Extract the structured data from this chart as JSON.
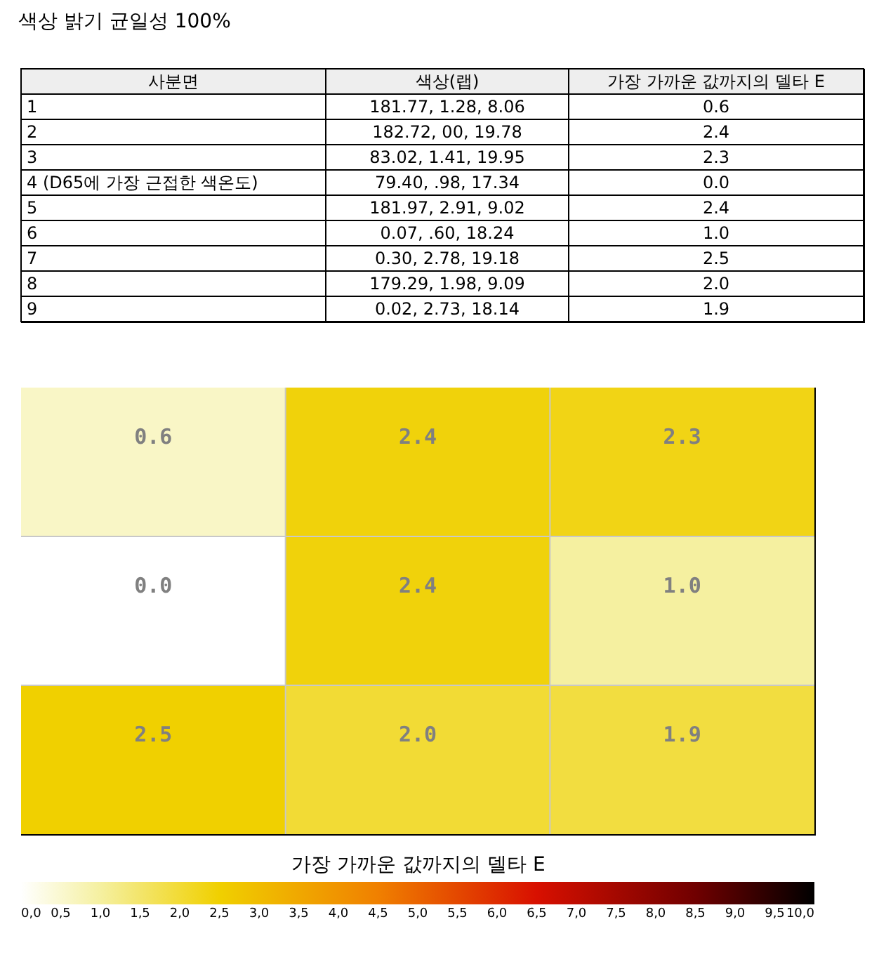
{
  "chart_data": [
    {
      "type": "other",
      "title": "색상 밝기 균일성 100%",
      "annotations": [
        "사분면",
        "색상(랩)",
        "가장 가까운 값까지의 델타 E",
        "1",
        "181.77, 1.28, 8.06",
        "0.6",
        "2",
        "182.72, 00, 19.78",
        "2.4",
        "3",
        "83.02, 1.41, 19.95",
        "2.3",
        "4 (D65에 가장 근접한 색온도)",
        "79.40, .98, 17.34",
        "0.0",
        "5",
        "181.97, 2.91, 9.02",
        "2.4",
        "6",
        "0.07, .60, 18.24",
        "1.0",
        "7",
        "0.30, 2.78, 19.18",
        "2.5",
        "8",
        "179.29, 1.98, 9.09",
        "2.0",
        "9",
        "0.02, 2.73, 18.14",
        "1.9"
      ]
    },
    {
      "type": "heatmap",
      "categories": [
        null,
        null,
        null
      ],
      "y_categories": [
        null,
        null,
        null
      ],
      "cells": [
        [
          0.6,
          2.4,
          2.3
        ],
        [
          0.0,
          2.4,
          1.0
        ],
        [
          2.5,
          2.0,
          1.9
        ]
      ],
      "cell_labels": [
        [
          "0.6",
          "2.4",
          "2.3"
        ],
        [
          "0.0",
          "2.4",
          "1.0"
        ],
        [
          "2.5",
          "2.0",
          "1.9"
        ]
      ],
      "grid": true,
      "clabel": "가장 가까운 값까지의 델타 E",
      "clim": [
        0,
        10
      ],
      "cticks": [
        {
          "value": 0,
          "label": "0,0"
        },
        {
          "value": 0.5,
          "label": "0,5"
        },
        {
          "value": 1,
          "label": "1,0"
        },
        {
          "value": 1.5,
          "label": "1,5"
        },
        {
          "value": 2,
          "label": "2,0"
        },
        {
          "value": 2.5,
          "label": "2,5"
        },
        {
          "value": 3,
          "label": "3,0"
        },
        {
          "value": 3.5,
          "label": "3,5"
        },
        {
          "value": 4,
          "label": "4,0"
        },
        {
          "value": 4.5,
          "label": "4,5"
        },
        {
          "value": 5,
          "label": "5,0"
        },
        {
          "value": 5.5,
          "label": "5,5"
        },
        {
          "value": 6,
          "label": "6,0"
        },
        {
          "value": 6.5,
          "label": "6,5"
        },
        {
          "value": 7,
          "label": "7,0"
        },
        {
          "value": 7.5,
          "label": "7,5"
        },
        {
          "value": 8,
          "label": "8,0"
        },
        {
          "value": 8.5,
          "label": "8,5"
        },
        {
          "value": 9,
          "label": "9,0"
        },
        {
          "value": 9.5,
          "label": "9,5"
        },
        {
          "value": 10,
          "label": "10,0"
        }
      ]
    }
  ]
}
